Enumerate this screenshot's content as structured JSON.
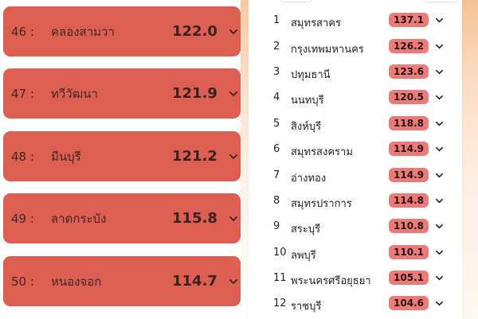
{
  "left_panel": {
    "items": [
      {
        "rank": "46 :",
        "name": "คลองสามวา",
        "value": "122.0"
      },
      {
        "rank": "47 :",
        "name": "ทวีวัฒนา",
        "value": "121.9"
      },
      {
        "rank": "48 :",
        "name": "มีนบุรี",
        "value": "121.2"
      },
      {
        "rank": "49 :",
        "name": "ลาดกระบัง",
        "value": "115.8"
      },
      {
        "rank": "50 :",
        "name": "หนองจอก",
        "value": "114.7"
      }
    ],
    "card_color": "#dd5f51",
    "chevron_icon": "chevron-down-icon"
  },
  "right_panel": {
    "items": [
      {
        "num": "1",
        "name": "สมุทรสาคร",
        "value": "137.1"
      },
      {
        "num": "2",
        "name": "กรุงเทพมหานคร",
        "value": "126.2"
      },
      {
        "num": "3",
        "name": "ปทุมธานี",
        "value": "123.6"
      },
      {
        "num": "4",
        "name": "นนทบุรี",
        "value": "120.5"
      },
      {
        "num": "5",
        "name": "สิงห์บุรี",
        "value": "118.8"
      },
      {
        "num": "6",
        "name": "สมุทรสงคราม",
        "value": "114.9"
      },
      {
        "num": "7",
        "name": "อ่างทอง",
        "value": "114.9"
      },
      {
        "num": "8",
        "name": "สมุทรปราการ",
        "value": "114.8"
      },
      {
        "num": "9",
        "name": "สระบุรี",
        "value": "110.8"
      },
      {
        "num": "10",
        "name": "ลพบุรี",
        "value": "110.1"
      },
      {
        "num": "11",
        "name": "พระนครศรีอยุธยา",
        "value": "105.1"
      },
      {
        "num": "12",
        "name": "ราชบุรี",
        "value": "104.6"
      }
    ],
    "badge_color": "#ea7b79",
    "chevron_icon": "chevron-down-icon"
  }
}
